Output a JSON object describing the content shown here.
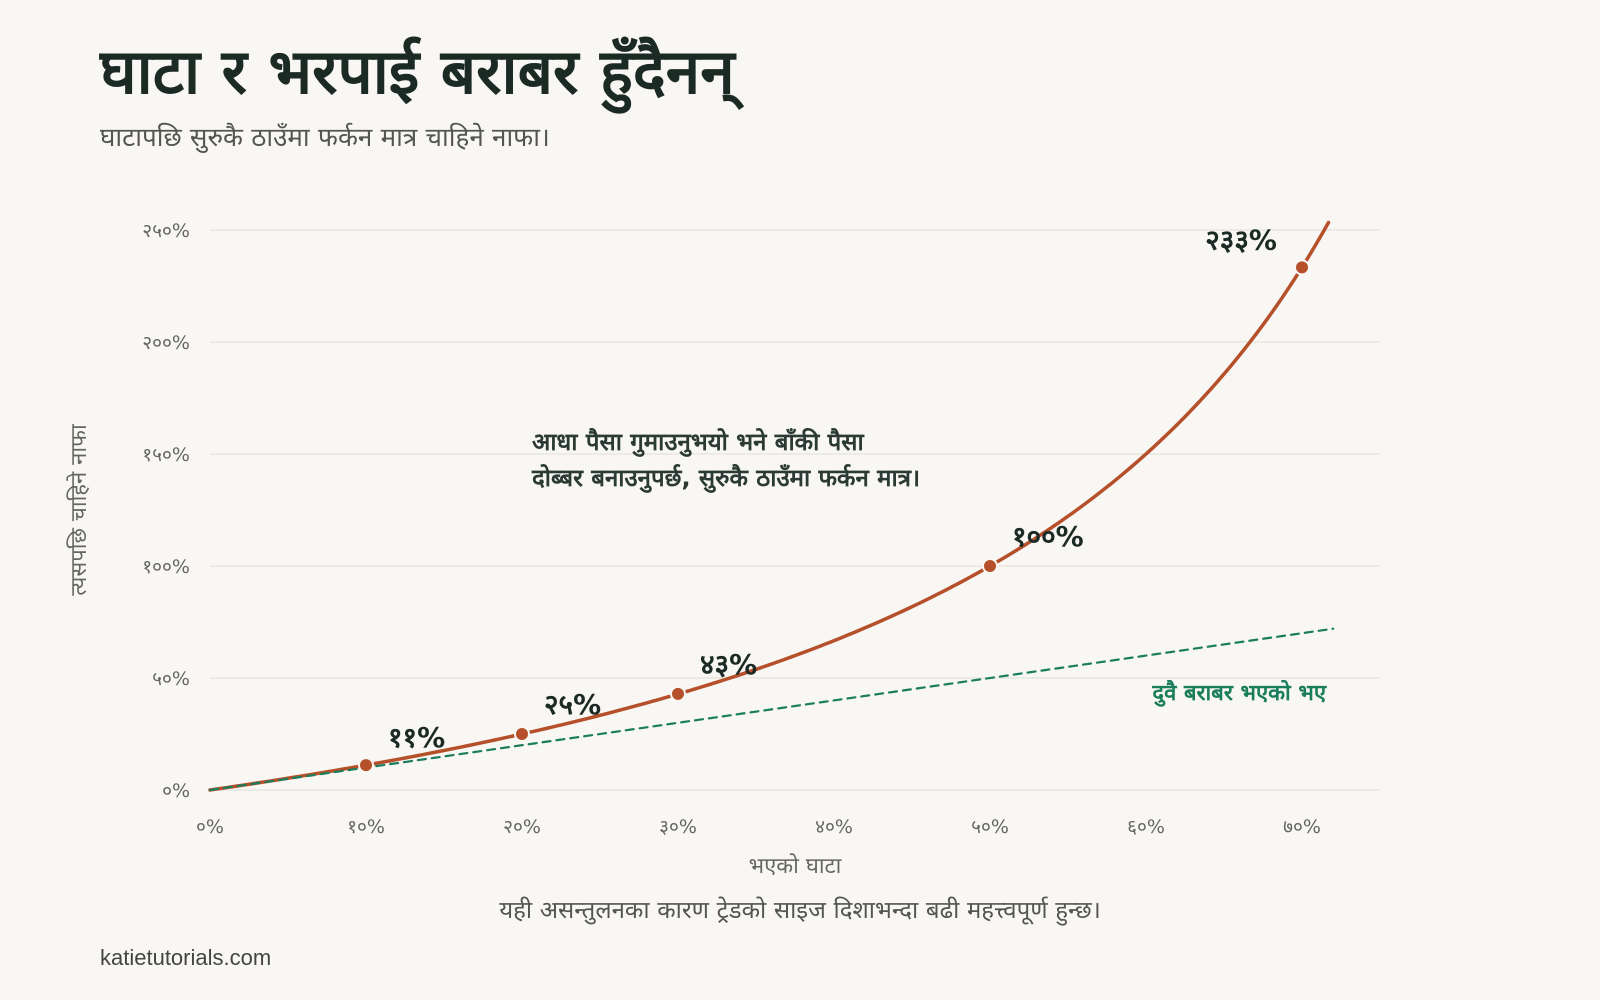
{
  "title": "घाटा र भरपाई बराबर हुँदैनन्",
  "subtitle": "घाटापछि सुरुकै ठाउँमा फर्कन मात्र चाहिने नाफा।",
  "footnote": "यही असन्तुलनका कारण ट्रेडको साइज दिशाभन्दा बढी महत्त्वपूर्ण हुन्छ।",
  "credit": "katietutorials.com",
  "chart_data": {
    "type": "line",
    "xlabel": "भएको घाटा",
    "ylabel": "त्यसपछि चाहिने नाफा",
    "xlim": [
      0,
      72
    ],
    "ylim": [
      0,
      250
    ],
    "x_ticks": [
      {
        "value": 0,
        "label": "०%"
      },
      {
        "value": 10,
        "label": "१०%"
      },
      {
        "value": 20,
        "label": "२०%"
      },
      {
        "value": 30,
        "label": "३०%"
      },
      {
        "value": 40,
        "label": "४०%"
      },
      {
        "value": 50,
        "label": "५०%"
      },
      {
        "value": 60,
        "label": "६०%"
      },
      {
        "value": 70,
        "label": "७०%"
      }
    ],
    "y_ticks": [
      {
        "value": 0,
        "label": "०%"
      },
      {
        "value": 50,
        "label": "५०%"
      },
      {
        "value": 100,
        "label": "१००%"
      },
      {
        "value": 150,
        "label": "१५०%"
      },
      {
        "value": 200,
        "label": "२००%"
      },
      {
        "value": 250,
        "label": "२५०%"
      }
    ],
    "grid": true,
    "series": [
      {
        "name": "",
        "color": "#b5502a",
        "style": "solid",
        "formula": "100*x/(100-x)",
        "x_range": [
          0,
          71.7
        ]
      },
      {
        "name": "दुवै बराबर भएको भए",
        "color": "#1a7d5c",
        "style": "dashed",
        "formula": "x",
        "x_range": [
          0,
          72
        ]
      }
    ],
    "points": [
      {
        "x": 10,
        "y": 11.1,
        "label": "११%"
      },
      {
        "x": 20,
        "y": 25,
        "label": "२५%"
      },
      {
        "x": 30,
        "y": 42.9,
        "label": "४३%"
      },
      {
        "x": 50,
        "y": 100,
        "label": "१००%"
      },
      {
        "x": 70,
        "y": 233.3,
        "label": "२३३%"
      }
    ],
    "annotation": [
      "आधा पैसा गुमाउनुभयो भने बाँकी पैसा",
      "दोब्बर बनाउनुपर्छ, सुरुकै ठाउँमा फर्कन मात्र।"
    ]
  }
}
